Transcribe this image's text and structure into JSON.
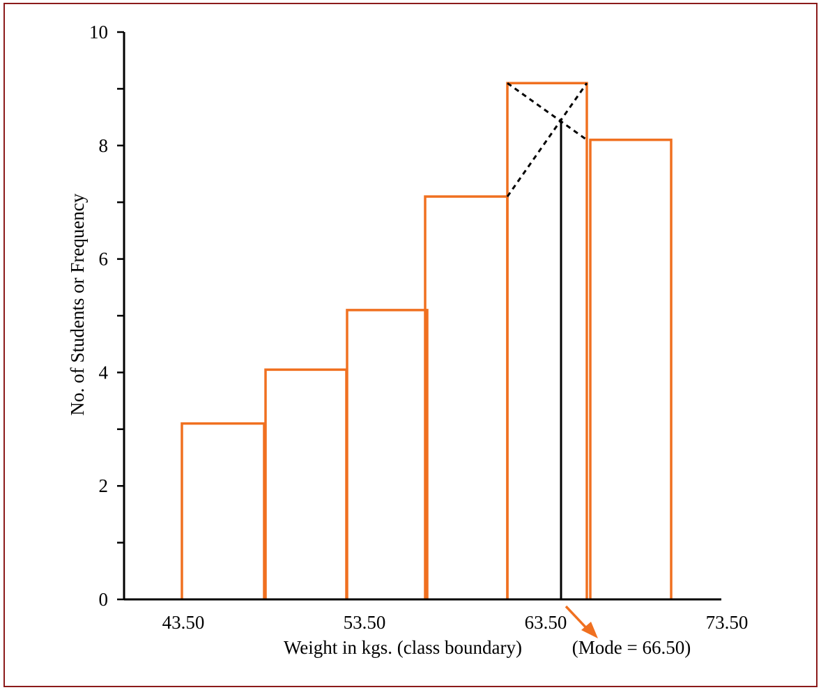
{
  "chart_data": {
    "type": "bar",
    "subtype": "histogram",
    "bins": [
      {
        "from": 43.5,
        "to": 48.5,
        "value": 3.1
      },
      {
        "from": 48.5,
        "to": 53.5,
        "value": 4.05
      },
      {
        "from": 53.5,
        "to": 58.5,
        "value": 5.1
      },
      {
        "from": 58.5,
        "to": 63.5,
        "value": 7.1
      },
      {
        "from": 63.5,
        "to": 68.5,
        "value": 9.1
      },
      {
        "from": 68.5,
        "to": 73.5,
        "value": 8.1
      }
    ],
    "xlabel": "Weight in kgs. (class boundary)",
    "ylabel": "No. of Students or Frequency",
    "xticks": [
      "43.50",
      "53.50",
      "63.50",
      "73.50"
    ],
    "xtick_values": [
      43.5,
      53.5,
      63.5,
      73.5
    ],
    "yticks": [
      "0",
      "2",
      "4",
      "6",
      "8",
      "10"
    ],
    "ytick_values": [
      0,
      2,
      4,
      6,
      8,
      10
    ],
    "ylim": [
      0,
      10
    ],
    "xlim": [
      40.0,
      76.0
    ],
    "mode": {
      "value": 66.5,
      "label": "(Mode = 66.50)"
    },
    "grid": false,
    "colors": {
      "bars": "#f07020",
      "axis": "#000000",
      "frame": "#8b1a1a",
      "mode_line": "#000000",
      "arrow": "#f07020"
    }
  }
}
